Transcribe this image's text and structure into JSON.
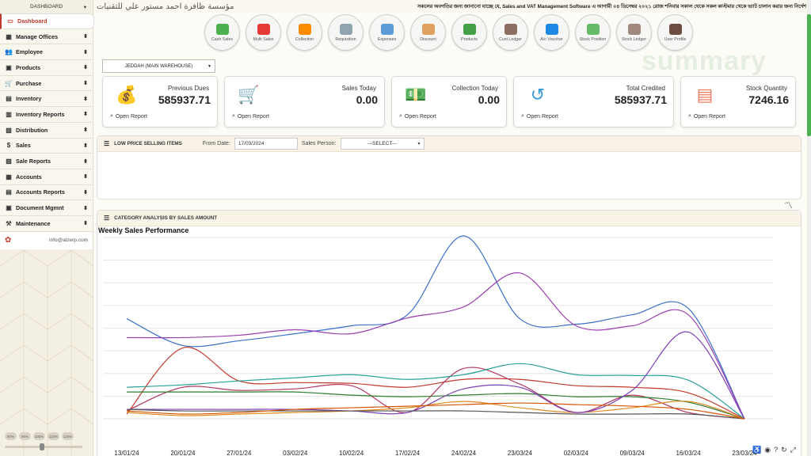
{
  "sidebar": {
    "top_label": "DASHBOARD",
    "items": [
      {
        "label": "Dashboard",
        "icon": "monitor-icon",
        "active": true
      },
      {
        "label": "Manage Offices",
        "icon": "building-icon"
      },
      {
        "label": "Employee",
        "icon": "users-icon"
      },
      {
        "label": "Products",
        "icon": "box-icon"
      },
      {
        "label": "Purchase",
        "icon": "cart-icon"
      },
      {
        "label": "Inventory",
        "icon": "warehouse-icon"
      },
      {
        "label": "Inventory Reports",
        "icon": "report-icon"
      },
      {
        "label": "Distribution",
        "icon": "map-icon"
      },
      {
        "label": "Sales",
        "icon": "dollar-icon"
      },
      {
        "label": "Sale Reports",
        "icon": "chart-icon"
      },
      {
        "label": "Accounts",
        "icon": "calculator-icon"
      },
      {
        "label": "Accounts Reports",
        "icon": "ledger-icon"
      },
      {
        "label": "Document Mgmnt",
        "icon": "folder-icon"
      },
      {
        "label": "Maintenance",
        "icon": "wrench-icon"
      }
    ],
    "email": "info@alzerp.com",
    "zoom_levels": [
      "80%",
      "90%",
      "100%",
      "110%",
      "120%"
    ]
  },
  "header": {
    "company": "مؤسسة ظافرة احمد مستور علي للتقنيات",
    "marquee": "সকলের অবগতির জন্য জানানো যাচ্ছে যে, Sales and VAT Management Software এ আগামী ০৪ ডিসেম্বর ২০২১ রোজ শনিবার সকাল থেকে সকল কাস্টমার থেকে ভ্যাট চালান করার জন্য নির্দেশ"
  },
  "quick_buttons": [
    {
      "label": "Cash Sales",
      "color": "#4caf50"
    },
    {
      "label": "Multi Sales",
      "color": "#e53935"
    },
    {
      "label": "Collection",
      "color": "#fb8c00"
    },
    {
      "label": "Requisition",
      "color": "#90a4ae"
    },
    {
      "label": "Expenses",
      "color": "#5c9bd6"
    },
    {
      "label": "Discount",
      "color": "#e0a060"
    },
    {
      "label": "Products",
      "color": "#43a047"
    },
    {
      "label": "Cust.Ledger",
      "color": "#8d6e63"
    },
    {
      "label": "A/c Voucher",
      "color": "#1e88e5"
    },
    {
      "label": "Stock Position",
      "color": "#66bb6a"
    },
    {
      "label": "Stock Ledger",
      "color": "#a1887f"
    },
    {
      "label": "User Profile",
      "color": "#6d4c41"
    }
  ],
  "watermark": "summary",
  "warehouse": {
    "selected": "JEDDAH (MAIN WAREHOUSE)"
  },
  "cards": [
    {
      "title": "Previous Dues",
      "value": "585937.71",
      "link": "Open Report",
      "icon": "money-icon",
      "color": "#f5a623"
    },
    {
      "title": "Sales Today",
      "value": "0.00",
      "link": "Open Report",
      "icon": "cart-icon",
      "color": "#2ecc71"
    },
    {
      "title": "Collection Today",
      "value": "0.00",
      "link": "Open Report",
      "icon": "cash-icon",
      "color": "#8e6fd1"
    },
    {
      "title": "Total Credited",
      "value": "585937.71",
      "link": "Open Report",
      "icon": "history-icon",
      "color": "#3498db"
    },
    {
      "title": "Stock Quantity",
      "value": "7246.16",
      "link": "Open Report",
      "icon": "archive-icon",
      "color": "#f07b5f"
    }
  ],
  "low_price": {
    "title": "LOW PRICE SELLING ITEMS",
    "from_date_label": "From Date:",
    "from_date": "17/03/2024",
    "sales_person_label": "Sales Person:",
    "sales_person": "---SELECT---"
  },
  "category_analysis": {
    "title": "CATEGORY ANALYSIS BY SALES AMOUNT"
  },
  "chart_data": {
    "type": "line",
    "title": "Weekly Sales Performance",
    "categories": [
      "13/01/24",
      "20/01/24",
      "27/01/24",
      "03/02/24",
      "10/02/24",
      "17/02/24",
      "24/02/24",
      "23/03/24",
      "02/03/24",
      "09/03/24",
      "16/03/24",
      "23/03/24"
    ],
    "ylim": [
      0,
      230
    ],
    "grid": true,
    "series": [
      {
        "color": "#3a6fc9",
        "values": [
          127,
          93,
          99,
          108,
          118,
          132,
          232,
          127,
          120,
          132,
          140,
          0
        ]
      },
      {
        "color": "#9b3fb0",
        "values": [
          103,
          103,
          106,
          113,
          108,
          128,
          142,
          185,
          118,
          118,
          132,
          0
        ]
      },
      {
        "color": "#c0392b",
        "values": [
          6,
          90,
          48,
          46,
          45,
          40,
          50,
          50,
          42,
          40,
          33,
          0
        ]
      },
      {
        "color": "#b2355f",
        "values": [
          10,
          40,
          36,
          38,
          42,
          8,
          64,
          44,
          8,
          30,
          8,
          0
        ]
      },
      {
        "color": "#2aa198",
        "values": [
          40,
          43,
          48,
          52,
          56,
          50,
          56,
          70,
          56,
          55,
          49,
          0
        ]
      },
      {
        "color": "#2e7d32",
        "values": [
          34,
          34,
          34,
          34,
          30,
          28,
          30,
          32,
          28,
          28,
          21,
          0
        ]
      },
      {
        "color": "#e08a1e",
        "values": [
          8,
          4,
          6,
          8,
          10,
          14,
          22,
          14,
          8,
          14,
          22,
          0
        ]
      },
      {
        "color": "#7b3fb5",
        "values": [
          12,
          12,
          12,
          12,
          10,
          8,
          38,
          40,
          8,
          36,
          110,
          0
        ]
      },
      {
        "color": "#555555",
        "values": [
          12,
          10,
          10,
          10,
          10,
          10,
          10,
          8,
          6,
          6,
          6,
          0
        ]
      },
      {
        "color": "#d35400",
        "values": [
          10,
          6,
          8,
          12,
          14,
          16,
          18,
          20,
          18,
          16,
          12,
          0
        ]
      }
    ]
  }
}
